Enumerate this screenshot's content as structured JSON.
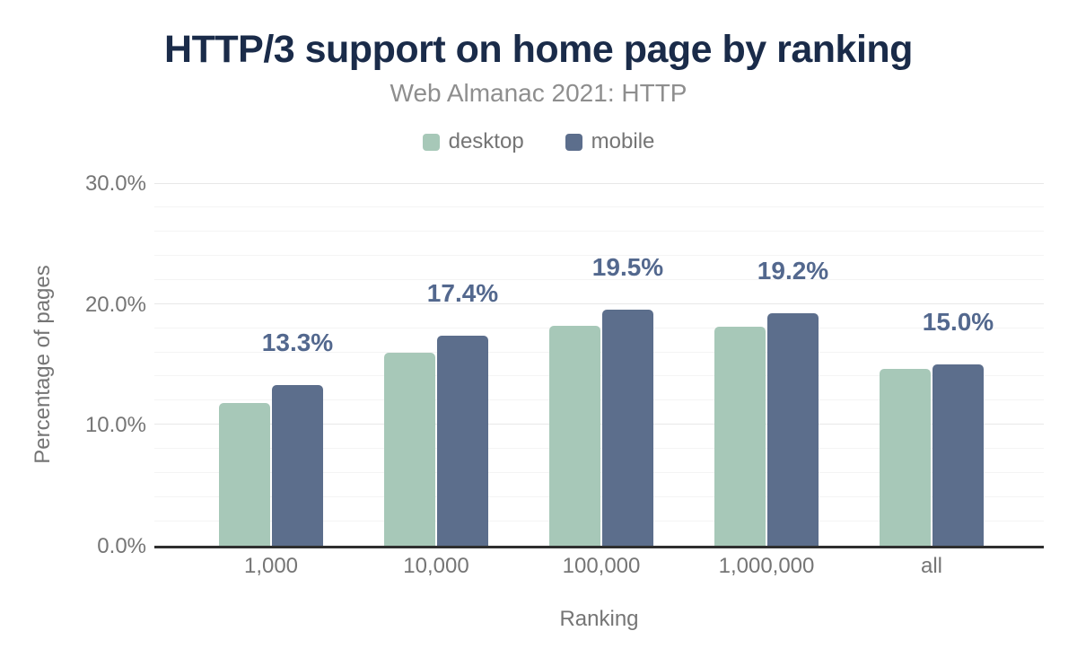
{
  "header": {
    "title": "HTTP/3 support on home page by ranking",
    "subtitle": "Web Almanac 2021: HTTP"
  },
  "legend": {
    "items": [
      {
        "label": "desktop",
        "color": "#a7c8b8"
      },
      {
        "label": "mobile",
        "color": "#5c6e8c"
      }
    ]
  },
  "chart_data": {
    "type": "bar",
    "title": "HTTP/3 support on home page by ranking",
    "subtitle": "Web Almanac 2021: HTTP",
    "categories": [
      "1,000",
      "10,000",
      "100,000",
      "1,000,000",
      "all"
    ],
    "series": [
      {
        "name": "desktop",
        "color": "#a7c8b8",
        "values": [
          11.8,
          16.0,
          18.2,
          18.1,
          14.6
        ]
      },
      {
        "name": "mobile",
        "color": "#5c6e8c",
        "values": [
          13.3,
          17.4,
          19.5,
          19.2,
          15.0
        ]
      }
    ],
    "annotations": {
      "series": "mobile",
      "labels": [
        "13.3%",
        "17.4%",
        "19.5%",
        "19.2%",
        "15.0%"
      ]
    },
    "xlabel": "Ranking",
    "ylabel": "Percentage of pages",
    "ylim": [
      0,
      30
    ],
    "yticks": [
      {
        "value": 0,
        "label": "0.0%"
      },
      {
        "value": 10,
        "label": "10.0%"
      },
      {
        "value": 20,
        "label": "20.0%"
      },
      {
        "value": 30,
        "label": "30.0%"
      }
    ],
    "minor_grid_step_percent": 2,
    "grid": true,
    "legend_position": "top"
  },
  "colors": {
    "title": "#1a2b49",
    "subtitle": "#8e8e8e",
    "axis_text": "#757575",
    "annotation_text": "#53688e",
    "axis_line": "#2f2f2f",
    "major_gridline": "#e8e8e8",
    "minor_gridline": "#f4f4f4",
    "background": "#ffffff"
  }
}
